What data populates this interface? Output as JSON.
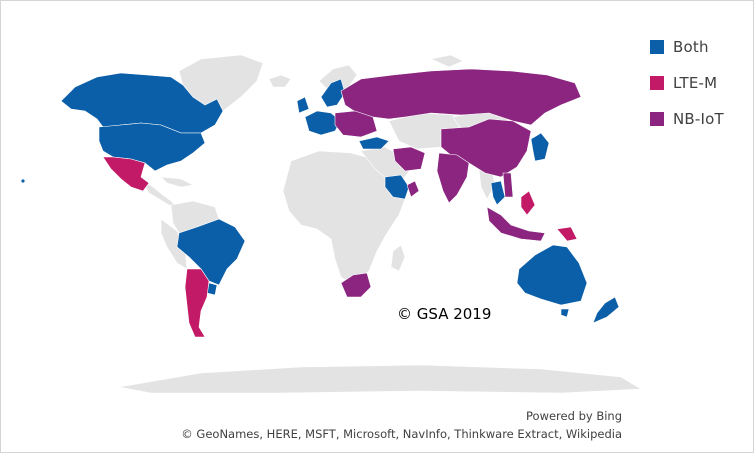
{
  "colors": {
    "both": "#0b5ea8",
    "lte_m": "#c21a66",
    "nb_iot": "#8b2580",
    "land": "#e3e3e3",
    "ocean": "#ffffff"
  },
  "legend": [
    {
      "key": "both",
      "label": "Both",
      "color": "#0b5ea8"
    },
    {
      "key": "lte_m",
      "label": "LTE-M",
      "color": "#c21a66"
    },
    {
      "key": "nb_iot",
      "label": "NB-IoT",
      "color": "#8b2580"
    }
  ],
  "map": {
    "copyright": "© GSA 2019",
    "powered_by": "Powered by Bing",
    "sources": "© GeoNames, HERE, MSFT, Microsoft, NavInfo, Thinkware Extract, Wikipedia"
  },
  "regions": {
    "both": [
      "Canada",
      "United States",
      "Brazil",
      "Uruguay",
      "Australia",
      "New Zealand",
      "Japan",
      "Thailand",
      "Saudi Arabia",
      "Turkey",
      "Western Europe"
    ],
    "lte_m": [
      "Mexico",
      "Argentina",
      "Chile",
      "Philippines",
      "Papua New Guinea"
    ],
    "nb_iot": [
      "Russia",
      "China",
      "India",
      "Indonesia",
      "South Africa",
      "Iran",
      "Oman",
      "Eastern Europe",
      "Southeast Asia"
    ]
  }
}
